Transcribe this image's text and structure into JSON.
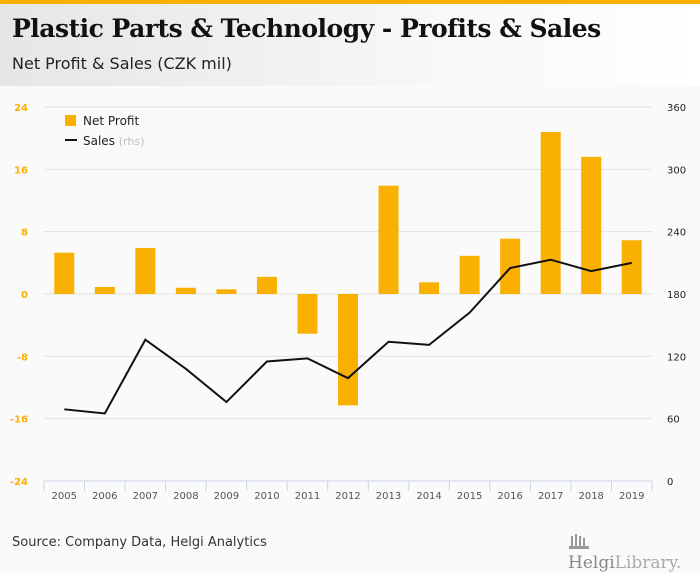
{
  "header": {
    "title": "Plastic Parts & Technology - Profits & Sales",
    "subtitle": "Net Profit & Sales (CZK mil)"
  },
  "footer": {
    "source": "Source: Company Data, Helgi Analytics",
    "logo_bold": "Helgi",
    "logo_light": "Library."
  },
  "colors": {
    "bar": "#f9b000",
    "line": "#111111",
    "left_axis": "#f9b000",
    "right_axis": "#222222"
  },
  "chart_data": {
    "type": "bar",
    "title": "Plastic Parts & Technology - Profits & Sales",
    "subtitle": "Net Profit & Sales (CZK mil)",
    "categories": [
      "2005",
      "2006",
      "2007",
      "2008",
      "2009",
      "2010",
      "2011",
      "2012",
      "2013",
      "2014",
      "2015",
      "2016",
      "2017",
      "2018",
      "2019"
    ],
    "series": [
      {
        "name": "Net Profit",
        "type": "bar",
        "axis": "left",
        "values": [
          5.3,
          0.9,
          5.9,
          0.8,
          0.6,
          2.2,
          -5.1,
          -14.3,
          13.9,
          1.5,
          4.9,
          7.1,
          20.8,
          17.6,
          6.9
        ]
      },
      {
        "name": "Sales",
        "type": "line",
        "axis": "right",
        "values": [
          69,
          65,
          136,
          108,
          76,
          115,
          118,
          99,
          134,
          131,
          162,
          205,
          213,
          202,
          210
        ]
      }
    ],
    "legend": {
      "items": [
        {
          "label": "Net Profit",
          "suffix": ""
        },
        {
          "label": "Sales",
          "suffix": "(rhs)"
        }
      ],
      "placement": "top-left"
    },
    "y_left": {
      "ylim": [
        -24,
        24
      ],
      "ticks": [
        "24",
        "16",
        "8",
        "0",
        "-8",
        "-16",
        "-24"
      ],
      "tick_values": [
        24,
        16,
        8,
        0,
        -8,
        -16,
        -24
      ]
    },
    "y_right": {
      "ylim": [
        0,
        360
      ],
      "ticks": [
        "360",
        "300",
        "240",
        "180",
        "120",
        "60",
        "0"
      ],
      "tick_values": [
        360,
        300,
        240,
        180,
        120,
        60,
        0
      ]
    },
    "xlabel": "",
    "ylabel": "",
    "grid": true
  }
}
